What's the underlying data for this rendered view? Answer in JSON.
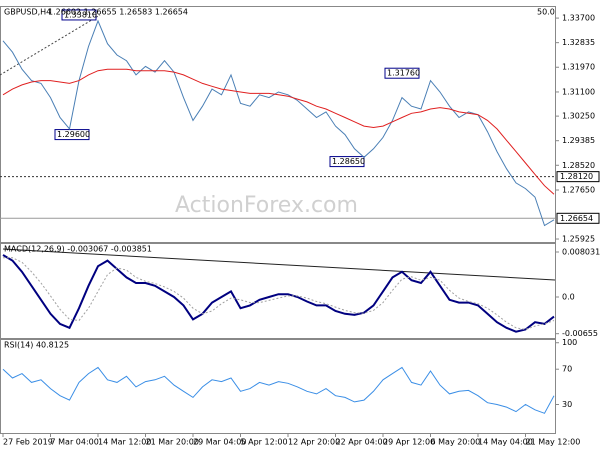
{
  "chart_data": [
    {
      "type": "line",
      "title": "GBPUSD,H4",
      "subtitle": "1.26602 1.26655 1.26583 1.26654",
      "scale_label": "50.0",
      "watermark": "ActionForex.com",
      "categories": [
        "27 Feb 2019",
        null,
        null,
        null,
        null,
        "7 Mar 04:00",
        null,
        null,
        null,
        null,
        "14 Mar 12:00",
        null,
        null,
        null,
        null,
        "21 Mar 20:00",
        null,
        null,
        null,
        null,
        "29 Mar 04:00",
        null,
        null,
        null,
        null,
        "5 Apr 12:00",
        null,
        null,
        null,
        null,
        "12 Apr 20:00",
        null,
        null,
        null,
        null,
        "22 Apr 04:00",
        null,
        null,
        null,
        null,
        "29 Apr 12:00",
        null,
        null,
        null,
        null,
        "6 May 20:00",
        null,
        null,
        null,
        null,
        "14 May 04:00",
        null,
        null,
        null,
        null,
        "21 May 12:00",
        null,
        null,
        null
      ],
      "series": [
        {
          "name": "GBPUSD",
          "color": "#4a7fb5",
          "values": [
            1.329,
            1.325,
            1.319,
            1.315,
            1.314,
            1.309,
            1.302,
            1.298,
            1.315,
            1.327,
            1.336,
            1.328,
            1.324,
            1.322,
            1.317,
            1.32,
            1.318,
            1.322,
            1.318,
            1.309,
            1.301,
            1.306,
            1.312,
            1.31,
            1.317,
            1.307,
            1.306,
            1.31,
            1.309,
            1.311,
            1.31,
            1.308,
            1.305,
            1.302,
            1.304,
            1.299,
            1.296,
            1.291,
            1.288,
            1.291,
            1.295,
            1.301,
            1.309,
            1.306,
            1.305,
            1.315,
            1.311,
            1.306,
            1.302,
            1.304,
            1.303,
            1.297,
            1.29,
            1.284,
            1.279,
            1.277,
            1.274,
            1.264,
            1.266
          ]
        },
        {
          "name": "MA",
          "color": "#e02020",
          "values": [
            1.31,
            1.312,
            1.3135,
            1.3145,
            1.315,
            1.315,
            1.3145,
            1.314,
            1.315,
            1.317,
            1.3185,
            1.319,
            1.319,
            1.319,
            1.3185,
            1.3185,
            1.3185,
            1.3185,
            1.318,
            1.317,
            1.3155,
            1.314,
            1.313,
            1.312,
            1.3115,
            1.311,
            1.3105,
            1.3105,
            1.3105,
            1.31,
            1.3095,
            1.3085,
            1.3075,
            1.306,
            1.305,
            1.3035,
            1.302,
            1.3005,
            1.299,
            1.2985,
            1.299,
            1.3005,
            1.302,
            1.3035,
            1.304,
            1.305,
            1.3055,
            1.305,
            1.304,
            1.3035,
            1.303,
            1.301,
            1.298,
            1.294,
            1.29,
            1.286,
            1.282,
            1.278,
            1.275
          ]
        }
      ],
      "ylim": [
        1.2582,
        1.3409
      ],
      "yticks": [
        {
          "value": 1.337,
          "label": "1.33700"
        },
        {
          "value": 1.32835,
          "label": "1.32835"
        },
        {
          "value": 1.3197,
          "label": "1.31970"
        },
        {
          "value": 1.311,
          "label": "1.31100"
        },
        {
          "value": 1.3025,
          "label": "1.30250"
        },
        {
          "value": 1.29385,
          "label": "1.29385"
        },
        {
          "value": 1.2852,
          "label": "1.28520"
        },
        {
          "value": 1.2765,
          "label": "1.27650"
        },
        {
          "value": 1.25925,
          "label": "1.25925"
        }
      ],
      "levels": [
        {
          "value": 1.2812,
          "label": "1.28120"
        },
        {
          "value": 1.26654,
          "label": "1.26654"
        }
      ],
      "annotations": [
        {
          "value": 1.3381,
          "label": "1.33810"
        },
        {
          "value": 1.296,
          "label": "1.29600"
        },
        {
          "value": 1.2865,
          "label": "1.28650"
        },
        {
          "value": 1.3176,
          "label": "1.31760"
        }
      ]
    },
    {
      "type": "line",
      "title": "MACD(12,26,9) -0.003067 -0.003851",
      "series": [
        {
          "name": "MACD",
          "color": "#000080",
          "values": [
            0.0075,
            0.0065,
            0.0045,
            0.002,
            -0.0005,
            -0.003,
            -0.0048,
            -0.0055,
            -0.002,
            0.002,
            0.0055,
            0.0065,
            0.005,
            0.0035,
            0.0025,
            0.0025,
            0.002,
            0.001,
            0,
            -0.0015,
            -0.004,
            -0.003,
            -0.001,
            0,
            0.001,
            -0.002,
            -0.0015,
            -0.0005,
            0,
            0.0005,
            0.0005,
            0,
            -0.0008,
            -0.0015,
            -0.0015,
            -0.0025,
            -0.003,
            -0.0032,
            -0.0028,
            -0.0015,
            0.001,
            0.0035,
            0.0045,
            0.003,
            0.0025,
            0.0045,
            0.002,
            -0.0005,
            -0.001,
            -0.001,
            -0.0015,
            -0.003,
            -0.0045,
            -0.0055,
            -0.0062,
            -0.0058,
            -0.0045,
            -0.0048,
            -0.0035
          ]
        },
        {
          "name": "Signal",
          "color": "#a0a0a0",
          "dashed": true,
          "values": [
            0.007,
            0.007,
            0.0062,
            0.0045,
            0.0025,
            0.0002,
            -0.0022,
            -0.004,
            -0.0042,
            -0.002,
            0.001,
            0.004,
            0.0052,
            0.0048,
            0.0035,
            0.0028,
            0.0024,
            0.0018,
            0.001,
            -0.0002,
            -0.002,
            -0.003,
            -0.0025,
            -0.0012,
            -0.0002,
            -0.0005,
            -0.001,
            -0.001,
            -0.0006,
            -0.0002,
            0.0002,
            0.0002,
            -0.0002,
            -0.0008,
            -0.0012,
            -0.0018,
            -0.0024,
            -0.0028,
            -0.0029,
            -0.0024,
            -0.001,
            0.0012,
            0.0032,
            0.0036,
            0.003,
            0.0035,
            0.003,
            0.0012,
            -0.0002,
            -0.0008,
            -0.0012,
            -0.002,
            -0.0032,
            -0.0045,
            -0.0055,
            -0.0058,
            -0.0052,
            -0.0048,
            -0.0042
          ]
        }
      ],
      "ylim": [
        -0.00732,
        0.00946
      ],
      "yticks": [
        0.008031,
        {
          "value": 0,
          "label": "0.0"
        },
        -0.00655
      ]
    },
    {
      "type": "line",
      "title": "RSI(14) 40.8125",
      "series": [
        {
          "name": "RSI",
          "color": "#3a8ee6",
          "values": [
            70,
            60,
            65,
            55,
            58,
            48,
            40,
            35,
            55,
            65,
            72,
            58,
            55,
            62,
            50,
            56,
            58,
            62,
            52,
            45,
            38,
            50,
            58,
            56,
            60,
            45,
            48,
            55,
            52,
            56,
            54,
            50,
            45,
            42,
            48,
            40,
            38,
            33,
            35,
            45,
            58,
            65,
            72,
            55,
            52,
            68,
            52,
            42,
            45,
            46,
            40,
            32,
            30,
            27,
            22,
            30,
            24,
            20,
            40
          ]
        }
      ],
      "ylim": [
        -2.3,
        103.1
      ],
      "yticks": [
        100,
        70,
        30
      ]
    }
  ]
}
